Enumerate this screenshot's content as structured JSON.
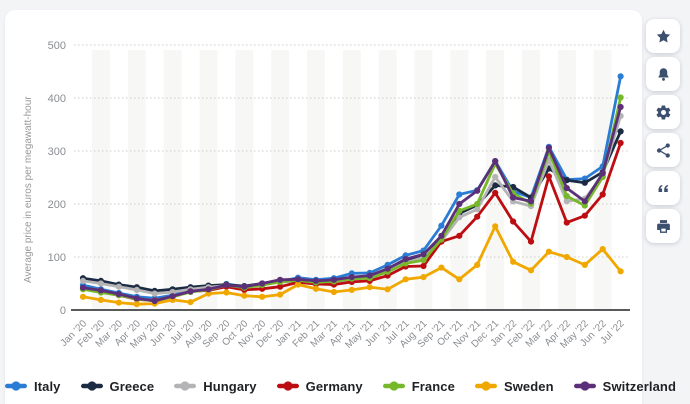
{
  "page": {
    "background_color": "#f3f4f6",
    "card_background_color": "#ffffff"
  },
  "chart_data": {
    "type": "line",
    "title": "",
    "xlabel": "",
    "ylabel": "Average price in euros per megawatt-hour",
    "ylim": [
      0,
      500
    ],
    "y_ticks": [
      0,
      100,
      200,
      300,
      400,
      500
    ],
    "grid": "horizontal dotted gridlines, alternating vertical month stripes",
    "legend_position": "bottom",
    "x": [
      "Jan ’20",
      "Feb ’20",
      "Mar ’20",
      "Apr ’20",
      "May ’20",
      "Jun ’20",
      "Jul ’20",
      "Aug ’20",
      "Sep ’20",
      "Oct ’20",
      "Nov ’20",
      "Dec ’20",
      "Jan ’21",
      "Feb ’21",
      "Mar ’21",
      "Apr ’21",
      "May ’21",
      "Jun ’21",
      "Jul ’21",
      "Aug ’21",
      "Sep ’21",
      "Oct ’21",
      "Nov ’21",
      "Dec ’21",
      "Jan ’22",
      "Feb ’22",
      "Mar ’22",
      "Apr ’22",
      "May ’22",
      "Jun ’22",
      "Jul ’22"
    ],
    "series": [
      {
        "name": "Italy",
        "color": "#2a7cd4",
        "values": [
          47,
          39,
          32,
          25,
          22,
          28,
          38,
          40,
          49,
          44,
          49,
          54,
          61,
          57,
          60,
          69,
          70,
          85,
          103,
          112,
          159,
          218,
          226,
          281,
          224,
          212,
          308,
          246,
          248,
          271,
          441
        ]
      },
      {
        "name": "Greece",
        "color": "#1c2b44",
        "values": [
          60,
          55,
          48,
          43,
          36,
          39,
          43,
          46,
          48,
          45,
          50,
          56,
          56,
          53,
          55,
          60,
          63,
          75,
          91,
          101,
          135,
          182,
          198,
          235,
          232,
          212,
          267,
          245,
          240,
          260,
          337
        ]
      },
      {
        "name": "Hungary",
        "color": "#b4b4b6",
        "values": [
          55,
          50,
          44,
          38,
          31,
          34,
          39,
          43,
          46,
          43,
          48,
          53,
          54,
          51,
          53,
          58,
          61,
          73,
          89,
          99,
          130,
          175,
          190,
          251,
          205,
          196,
          283,
          205,
          210,
          254,
          366
        ]
      },
      {
        "name": "Germany",
        "color": "#bc0e12",
        "values": [
          41,
          34,
          28,
          20,
          18,
          25,
          35,
          37,
          44,
          38,
          40,
          44,
          52,
          49,
          48,
          53,
          55,
          65,
          82,
          83,
          129,
          140,
          176,
          221,
          167,
          129,
          252,
          165,
          178,
          218,
          315
        ]
      },
      {
        "name": "France",
        "color": "#77b82a",
        "values": [
          39,
          33,
          28,
          21,
          17,
          25,
          34,
          38,
          47,
          42,
          47,
          53,
          56,
          52,
          54,
          59,
          60,
          72,
          88,
          94,
          133,
          187,
          200,
          276,
          220,
          201,
          299,
          215,
          197,
          251,
          401
        ]
      },
      {
        "name": "Sweden",
        "color": "#f0a800",
        "values": [
          25,
          19,
          14,
          11,
          12,
          19,
          15,
          31,
          33,
          27,
          25,
          29,
          48,
          40,
          34,
          38,
          43,
          39,
          58,
          62,
          80,
          58,
          85,
          158,
          91,
          75,
          110,
          100,
          85,
          115,
          73
        ]
      },
      {
        "name": "Switzerland",
        "color": "#5c3078",
        "values": [
          42,
          37,
          30,
          22,
          17,
          26,
          35,
          39,
          47,
          44,
          50,
          57,
          58,
          55,
          57,
          62,
          65,
          78,
          96,
          105,
          140,
          200,
          225,
          281,
          212,
          205,
          306,
          230,
          205,
          258,
          383
        ]
      }
    ],
    "style": {
      "stripe_color": "#f7f7f5",
      "gridline_color": "#cccccc",
      "axis_line_color": "#58595b",
      "tick_label_color": "#8a8d91",
      "axis_title_color": "#97999c"
    }
  },
  "sidebar": {
    "buttons": [
      {
        "icon": "star"
      },
      {
        "icon": "bell"
      },
      {
        "icon": "gear"
      },
      {
        "icon": "share"
      },
      {
        "icon": "quote"
      },
      {
        "icon": "print"
      }
    ],
    "icon_color": "#3d4f6e"
  }
}
